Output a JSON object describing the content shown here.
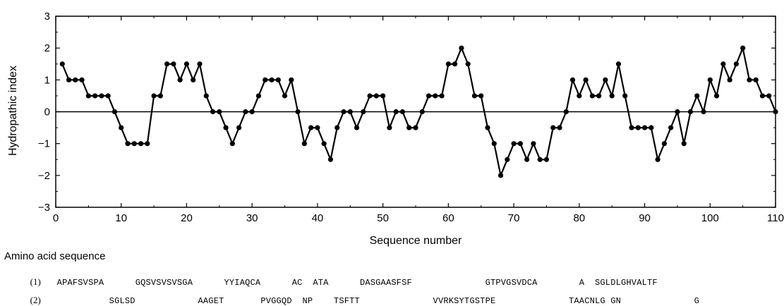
{
  "chart_data": {
    "type": "line",
    "xlabel": "Sequence number",
    "ylabel": "Hydropathic index",
    "xlim": [
      0,
      110
    ],
    "ylim": [
      -3,
      3
    ],
    "x_ticks": [
      0,
      10,
      20,
      30,
      40,
      50,
      60,
      70,
      80,
      90,
      100,
      110
    ],
    "y_ticks": [
      3,
      2,
      1,
      0,
      -1,
      -2,
      -3
    ],
    "y_tick_labels": [
      "3",
      "2",
      "1",
      "0",
      "−1",
      "−2",
      "−3"
    ],
    "zero_line": true,
    "series": [
      {
        "x": [
          1,
          2,
          3,
          4,
          5,
          6,
          7,
          8,
          9,
          10,
          11,
          12,
          13,
          14,
          15,
          16,
          17,
          18,
          19,
          20,
          21,
          22,
          23,
          24,
          25,
          26,
          27,
          28,
          29,
          30,
          31,
          32,
          33,
          34,
          35,
          36,
          37,
          38,
          39,
          40,
          41,
          42,
          43,
          44,
          45,
          46,
          47,
          48,
          49,
          50,
          51,
          52,
          53,
          54,
          55,
          56,
          57,
          58,
          59,
          60,
          61,
          62,
          63,
          64,
          65,
          66,
          67,
          68,
          69,
          70,
          71,
          72,
          73,
          74,
          75,
          76,
          77,
          78,
          79,
          80,
          81,
          82,
          83,
          84,
          85,
          86,
          87,
          88,
          89,
          90,
          91,
          92,
          93,
          94,
          95,
          96,
          97,
          98,
          99,
          100,
          101,
          102,
          103,
          104,
          105,
          106,
          107,
          108,
          109,
          110
        ],
        "y": [
          1.5,
          1.0,
          1.0,
          1.0,
          0.5,
          0.5,
          0.5,
          0.5,
          0.0,
          -0.5,
          -1.0,
          -1.0,
          -1.0,
          -1.0,
          0.5,
          0.5,
          1.5,
          1.5,
          1.0,
          1.5,
          1.0,
          1.5,
          0.5,
          0.0,
          0.0,
          -0.5,
          -1.0,
          -0.5,
          0.0,
          0.0,
          0.5,
          1.0,
          1.0,
          1.0,
          0.5,
          1.0,
          0.0,
          -1.0,
          -0.5,
          -0.5,
          -1.0,
          -1.5,
          -0.5,
          0.0,
          0.0,
          -0.5,
          0.0,
          0.5,
          0.5,
          0.5,
          -0.5,
          0.0,
          0.0,
          -0.5,
          -0.5,
          0.0,
          0.5,
          0.5,
          0.5,
          1.5,
          1.5,
          2.0,
          1.5,
          0.5,
          0.5,
          -0.5,
          -1.0,
          -2.0,
          -1.5,
          -1.0,
          -1.0,
          -1.5,
          -1.0,
          -1.5,
          -1.5,
          -0.5,
          -0.5,
          0.0,
          1.0,
          0.5,
          1.0,
          0.5,
          0.5,
          1.0,
          0.5,
          1.5,
          0.5,
          -0.5,
          -0.5,
          -0.5,
          -0.5,
          -1.5,
          -1.0,
          -0.5,
          0.0,
          -1.0,
          0.0,
          0.5,
          0.0,
          1.0,
          0.5,
          1.5,
          1.0,
          1.5,
          2.0,
          1.0,
          1.0,
          0.5,
          0.5,
          0.0
        ]
      }
    ]
  },
  "sequence": {
    "title": "Amino acid sequence",
    "rows": [
      {
        "label": "(1)",
        "text": "APAFSVSPA      GQSVSVSVSGA      YYIAQCA      AC  ATA      DASGAASFSF              GTPVGSVDCA        A  SGLDLGHVALTF"
      },
      {
        "label": "(2)",
        "text": "          SGLSD            AAGET       PVGGQD  NP    TSFTT              VVRKSYTGSTPE              TAACNLG GN              G"
      }
    ]
  }
}
